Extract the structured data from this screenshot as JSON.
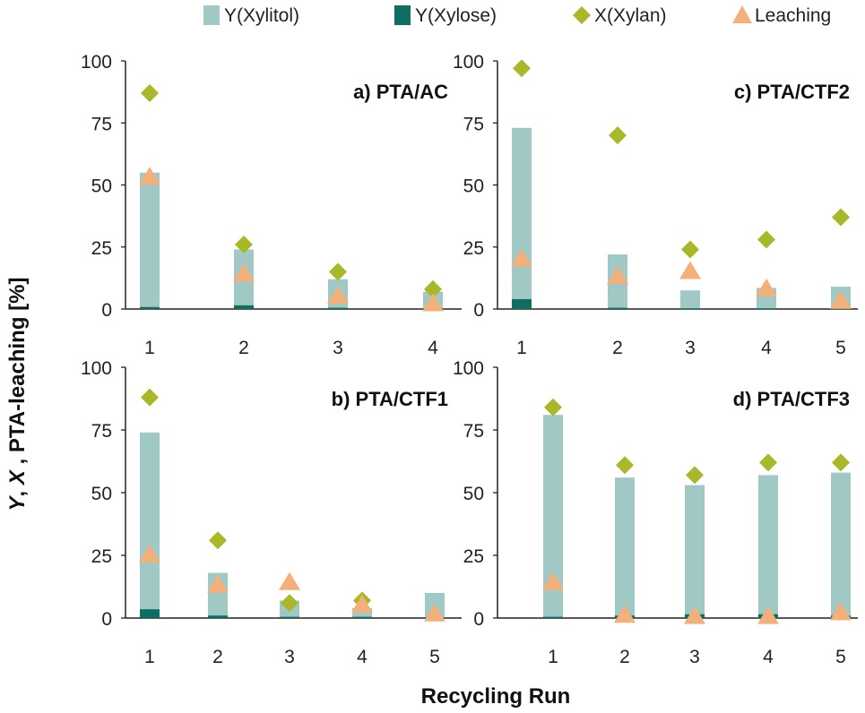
{
  "colors": {
    "xylitol": "#a0c9c6",
    "xylose": "#0e6e61",
    "xylan": "#a8b828",
    "leaching": "#f4b07a",
    "axis": "#222222"
  },
  "legend": [
    {
      "key": "xylitol",
      "label": "Y(Xylitol)",
      "shape": "bar"
    },
    {
      "key": "xylose",
      "label": "Y(Xylose)",
      "shape": "bar"
    },
    {
      "key": "xylan",
      "label": "X(Xylan)",
      "shape": "diamond"
    },
    {
      "key": "leaching",
      "label": "Leaching",
      "shape": "triangle"
    }
  ],
  "axes": {
    "ylabel_parts": [
      "Y",
      ", ",
      "X",
      " , PTA-leaching [%]"
    ],
    "xlabel": "Recycling Run"
  },
  "chart_data": [
    {
      "id": "a",
      "type": "bar",
      "title": "a) PTA/AC",
      "categories": [
        "1",
        "2",
        "3",
        "4"
      ],
      "ylim": [
        0,
        100
      ],
      "yticks": [
        "0",
        "25",
        "50",
        "75",
        "100"
      ],
      "series": [
        {
          "name": "Y(Xylitol)",
          "kind": "bar",
          "values": [
            55,
            24,
            12,
            7
          ]
        },
        {
          "name": "Y(Xylose)",
          "kind": "bar",
          "values": [
            0.8,
            1.5,
            0.5,
            0.3
          ]
        },
        {
          "name": "X(Xylan)",
          "kind": "diamond",
          "values": [
            87,
            26,
            15,
            8
          ]
        },
        {
          "name": "Leaching",
          "kind": "triangle",
          "values": [
            53,
            14,
            5,
            2
          ]
        }
      ]
    },
    {
      "id": "c",
      "type": "bar",
      "title": "c) PTA/CTF2",
      "categories": [
        "1",
        "2",
        "3",
        "4",
        "5"
      ],
      "ylim": [
        0,
        100
      ],
      "yticks": [
        "0",
        "25",
        "50",
        "75",
        "100"
      ],
      "series": [
        {
          "name": "Y(Xylitol)",
          "kind": "bar",
          "values": [
            73,
            22,
            7.5,
            8.5,
            9
          ]
        },
        {
          "name": "Y(Xylose)",
          "kind": "bar",
          "values": [
            4,
            0.5,
            0.3,
            0.3,
            0.3
          ]
        },
        {
          "name": "X(Xylan)",
          "kind": "diamond",
          "values": [
            97,
            70,
            24,
            28,
            37
          ]
        },
        {
          "name": "Leaching",
          "kind": "triangle",
          "values": [
            20,
            13,
            15,
            8,
            3
          ]
        }
      ]
    },
    {
      "id": "b",
      "type": "bar",
      "title": "b) PTA/CTF1",
      "categories": [
        "1",
        "2",
        "3",
        "4",
        "5"
      ],
      "ylim": [
        0,
        100
      ],
      "yticks": [
        "0",
        "25",
        "50",
        "75",
        "100"
      ],
      "series": [
        {
          "name": "Y(Xylitol)",
          "kind": "bar",
          "values": [
            74,
            18,
            7,
            4,
            10
          ]
        },
        {
          "name": "Y(Xylose)",
          "kind": "bar",
          "values": [
            3.5,
            1,
            0.5,
            0.5,
            0.3
          ]
        },
        {
          "name": "X(Xylan)",
          "kind": "diamond",
          "values": [
            88,
            31,
            6,
            7,
            0
          ]
        },
        {
          "name": "Leaching",
          "kind": "triangle",
          "values": [
            25,
            13,
            14,
            5,
            1.5
          ]
        }
      ]
    },
    {
      "id": "d",
      "type": "bar",
      "title": "d) PTA/CTF3",
      "categories": [
        "1",
        "2",
        "3",
        "4",
        "5"
      ],
      "ylim": [
        0,
        100
      ],
      "yticks": [
        "0",
        "25",
        "50",
        "75",
        "100"
      ],
      "series": [
        {
          "name": "Y(Xylitol)",
          "kind": "bar",
          "values": [
            81,
            56,
            53,
            57,
            58
          ]
        },
        {
          "name": "Y(Xylose)",
          "kind": "bar",
          "values": [
            0.5,
            1,
            1.5,
            1.5,
            1
          ]
        },
        {
          "name": "X(Xylan)",
          "kind": "diamond",
          "values": [
            84,
            61,
            57,
            62,
            62
          ]
        },
        {
          "name": "Leaching",
          "kind": "triangle",
          "values": [
            14,
            1,
            0.5,
            0.5,
            2
          ]
        }
      ]
    }
  ]
}
